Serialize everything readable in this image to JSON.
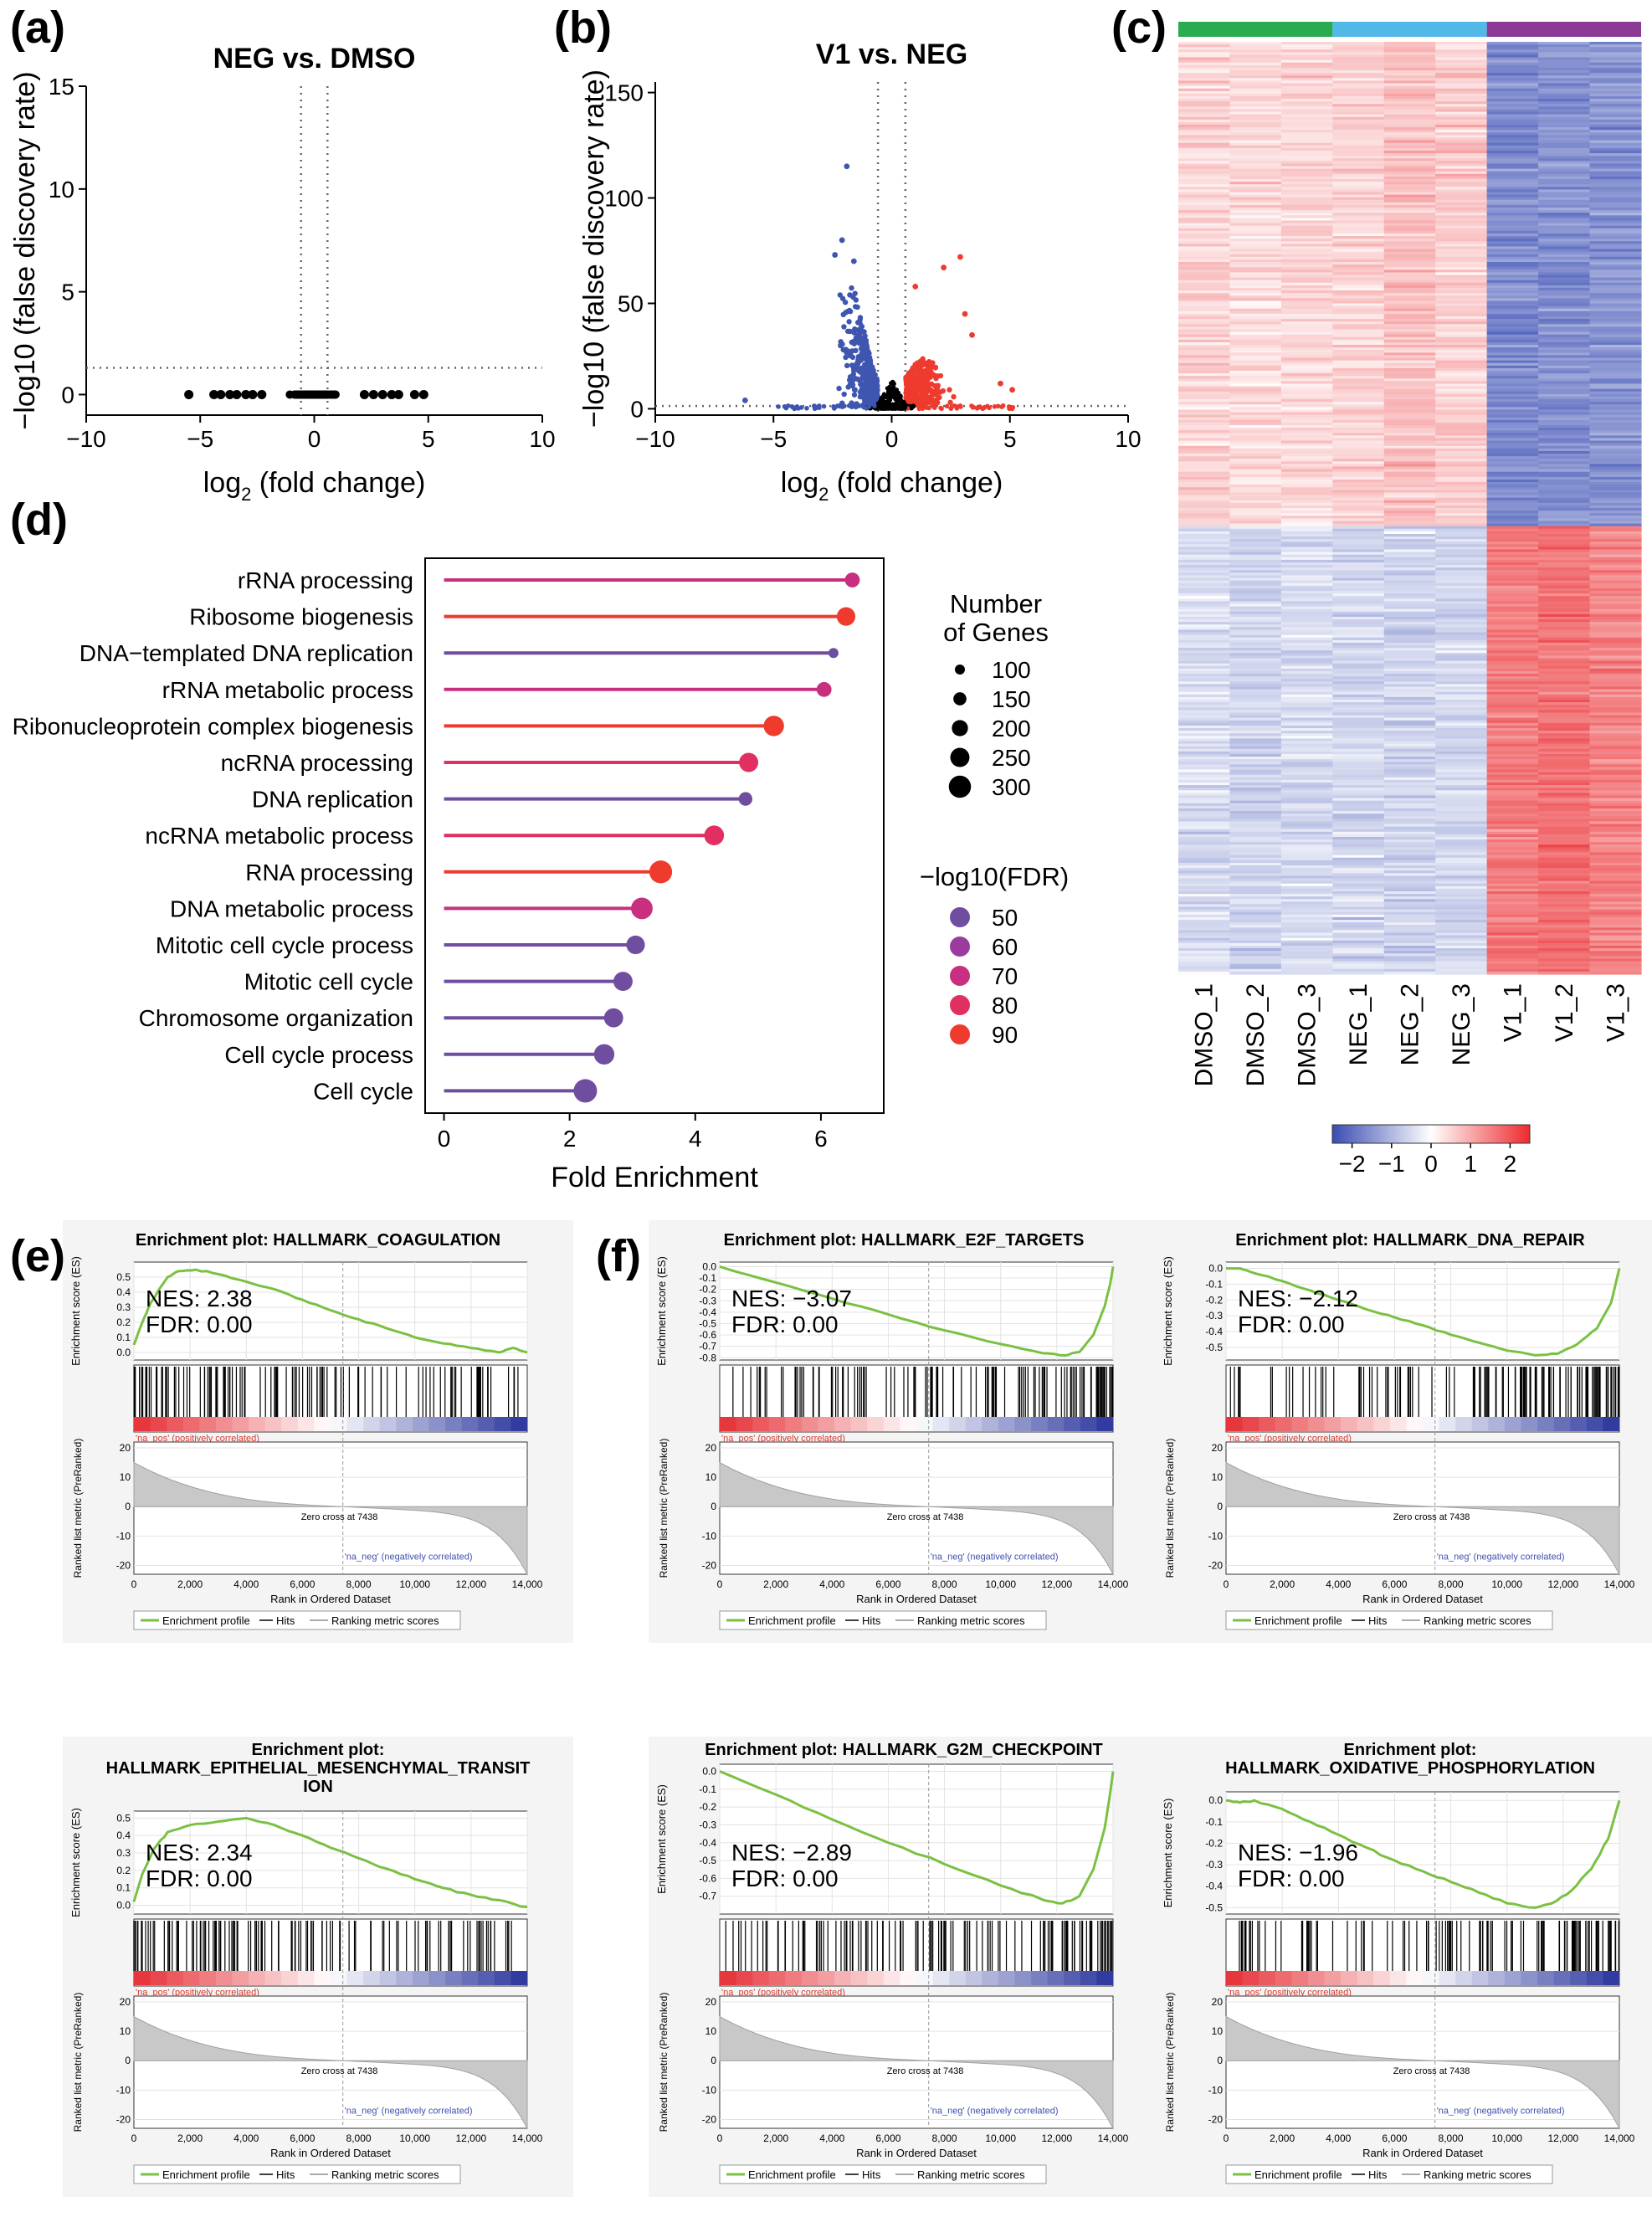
{
  "panel_labels": {
    "a": "(a)",
    "b": "(b)",
    "c": "(c)",
    "d": "(d)",
    "e": "(e)",
    "f": "(f)"
  },
  "colors": {
    "up": "#ee3b2e",
    "down": "#3f56b0",
    "ns": "#000000",
    "green": "#2bab4f",
    "cyan": "#51b8e8",
    "purple": "#8b3a96",
    "es_line": "#7ac143"
  },
  "icons": {
    "legend_dot": "filled-circle",
    "es_line": "green-line"
  },
  "chart_data": [
    {
      "id": "volcano_a",
      "type": "scatter",
      "title": "NEG vs. DMSO",
      "xlabel_main": "log",
      "xlabel_sub": "2",
      "xlabel_rest": " (fold change)",
      "ylabel": "−log10 (false discovery rate)",
      "xlim": [
        -10,
        10
      ],
      "ylim": [
        -1,
        15
      ],
      "xticks": [
        -10,
        -5,
        0,
        5,
        10
      ],
      "yticks": [
        0,
        5,
        10,
        15
      ],
      "xtick_labels": [
        "−10",
        "−5",
        "0",
        "5",
        "10"
      ],
      "ytick_labels": [
        "0",
        "5",
        "10",
        "15"
      ],
      "vlines": [
        -0.58,
        0.58
      ],
      "hline": 1.3,
      "points": {
        "x_min": -5.5,
        "x_max": 4.8,
        "y": 0,
        "explicit_x": [
          -5.5,
          -4.4,
          -4.1,
          -3.7,
          -3.4,
          -3.0,
          -2.7,
          -2.3,
          2.2,
          2.6,
          3.0,
          3.4,
          3.7,
          4.4,
          4.8
        ]
      }
    },
    {
      "id": "volcano_b",
      "type": "scatter",
      "title": "V1 vs. NEG",
      "xlabel_main": "log",
      "xlabel_sub": "2",
      "xlabel_rest": " (fold change)",
      "ylabel": "−log10 (false discovery rate)",
      "xlim": [
        -10,
        10
      ],
      "ylim": [
        -3,
        155
      ],
      "xticks": [
        -10,
        -5,
        0,
        5,
        10
      ],
      "yticks": [
        0,
        50,
        100,
        150
      ],
      "xtick_labels": [
        "−10",
        "−5",
        "0",
        "5",
        "10"
      ],
      "ytick_labels": [
        "0",
        "50",
        "100",
        "150"
      ],
      "vlines": [
        -0.58,
        0.58
      ],
      "hline": 1.3,
      "outliers_down": [
        [
          -1.9,
          115
        ],
        [
          -2.1,
          80
        ],
        [
          -1.6,
          70
        ],
        [
          -2.4,
          73
        ],
        [
          -6.2,
          4
        ]
      ],
      "outliers_up": [
        [
          2.2,
          67
        ],
        [
          2.9,
          72
        ],
        [
          1.0,
          58
        ],
        [
          3.1,
          45
        ],
        [
          3.4,
          35
        ],
        [
          4.6,
          12
        ],
        [
          5.1,
          9
        ]
      ]
    },
    {
      "id": "heatmap_c",
      "type": "heatmap",
      "samples": [
        "DMSO_1",
        "DMSO_2",
        "DMSO_3",
        "NEG_1",
        "NEG_2",
        "NEG_3",
        "V1_1",
        "V1_2",
        "V1_3"
      ],
      "groups": [
        "DMSO",
        "NEG",
        "V1"
      ],
      "upper_means": [
        0.55,
        0.45,
        0.5,
        0.55,
        0.75,
        0.6,
        -1.6,
        -1.5,
        -1.5
      ],
      "lower_means": [
        -0.5,
        -0.6,
        -0.5,
        -0.55,
        -0.6,
        -0.55,
        1.6,
        1.7,
        1.5
      ],
      "upper_fraction": 0.52,
      "color_scale": {
        "min": -2.5,
        "max": 2.5,
        "ticks": [
          -2,
          -1,
          0,
          1,
          2
        ],
        "tick_labels": [
          "−2",
          "−1",
          "0",
          "1",
          "2"
        ]
      }
    },
    {
      "id": "go_enrichment_d",
      "type": "lollipop",
      "xlabel": "Fold Enrichment",
      "xlim": [
        -0.3,
        7.0
      ],
      "xticks": [
        0,
        2,
        4,
        6
      ],
      "xtick_labels": [
        "0",
        "2",
        "4",
        "6"
      ],
      "terms": [
        {
          "label": "rRNA processing",
          "fe": 6.5,
          "genes": 180,
          "fdr": 74
        },
        {
          "label": "Ribosome biogenesis",
          "fe": 6.4,
          "genes": 240,
          "fdr": 88
        },
        {
          "label": "DNA−templated DNA replication",
          "fe": 6.2,
          "genes": 100,
          "fdr": 55
        },
        {
          "label": "rRNA metabolic process",
          "fe": 6.05,
          "genes": 180,
          "fdr": 74
        },
        {
          "label": "Ribonucleoprotein complex biogenesis",
          "fe": 5.25,
          "genes": 270,
          "fdr": 88
        },
        {
          "label": "ncRNA processing",
          "fe": 4.85,
          "genes": 250,
          "fdr": 78
        },
        {
          "label": "DNA replication",
          "fe": 4.8,
          "genes": 160,
          "fdr": 55
        },
        {
          "label": "ncRNA metabolic process",
          "fe": 4.3,
          "genes": 260,
          "fdr": 84
        },
        {
          "label": "RNA processing",
          "fe": 3.45,
          "genes": 310,
          "fdr": 88
        },
        {
          "label": "DNA metabolic process",
          "fe": 3.15,
          "genes": 290,
          "fdr": 74
        },
        {
          "label": "Mitotic cell cycle process",
          "fe": 3.05,
          "genes": 240,
          "fdr": 55
        },
        {
          "label": "Mitotic cell cycle",
          "fe": 2.85,
          "genes": 250,
          "fdr": 55
        },
        {
          "label": "Chromosome organization",
          "fe": 2.7,
          "genes": 250,
          "fdr": 55
        },
        {
          "label": "Cell cycle process",
          "fe": 2.55,
          "genes": 270,
          "fdr": 55
        },
        {
          "label": "Cell cycle",
          "fe": 2.25,
          "genes": 320,
          "fdr": 55
        }
      ],
      "size_legend": {
        "title1": "Number",
        "title2": "of Genes",
        "values": [
          100,
          150,
          200,
          250,
          300
        ],
        "labels": [
          "100",
          "150",
          "200",
          "250",
          "300"
        ]
      },
      "color_legend": {
        "title": "−log10(FDR)",
        "values": [
          50,
          60,
          70,
          80,
          90
        ],
        "labels": [
          "50",
          "60",
          "70",
          "80",
          "90"
        ],
        "colors": [
          "#6f4ea0",
          "#9a3c9d",
          "#c8307f",
          "#e02f60",
          "#ee3b2e"
        ]
      }
    },
    {
      "id": "gsea_panels",
      "type": "line",
      "common": {
        "ranked_ylabel": "Ranked list metric (PreRanked)",
        "es_ylabel": "Enrichment score (ES)",
        "xlabel": "Rank in Ordered Dataset",
        "xticks": [
          0,
          2000,
          4000,
          6000,
          8000,
          10000,
          12000,
          14000
        ],
        "xtick_labels": [
          "0",
          "2,000",
          "4,000",
          "6,000",
          "8,000",
          "10,000",
          "12,000",
          "14,000"
        ],
        "ranked_yticks": [
          20,
          10,
          0,
          -10,
          -20
        ],
        "ranked_ytick_labels": [
          "20",
          "10",
          "0",
          "-10",
          "-20"
        ],
        "na_pos": "'na_pos' (positively correlated)",
        "na_neg": "'na_neg' (negatively correlated)",
        "zero_cross": "Zero cross at 7438",
        "legend": [
          "Enrichment profile",
          "Hits",
          "Ranking metric scores"
        ],
        "nes_prefix": "NES:",
        "fdr_prefix": "FDR:"
      },
      "plots": [
        {
          "title_lines": [
            "Enrichment plot: HALLMARK_COAGULATION"
          ],
          "nes": "2.38",
          "fdr": "0.00",
          "ymin": -0.05,
          "ymax": 0.6,
          "yticks": [
            0.0,
            0.1,
            0.2,
            0.3,
            0.4,
            0.5
          ],
          "ytick_labels": [
            "0.0",
            "0.1",
            "0.2",
            "0.3",
            "0.4",
            "0.5"
          ],
          "es_curve": [
            [
              0,
              0.05
            ],
            [
              300,
              0.2
            ],
            [
              600,
              0.33
            ],
            [
              900,
              0.42
            ],
            [
              1200,
              0.5
            ],
            [
              1600,
              0.54
            ],
            [
              2200,
              0.55
            ],
            [
              3000,
              0.52
            ],
            [
              4000,
              0.47
            ],
            [
              5000,
              0.42
            ],
            [
              6000,
              0.35
            ],
            [
              7000,
              0.28
            ],
            [
              8000,
              0.22
            ],
            [
              9000,
              0.16
            ],
            [
              10000,
              0.1
            ],
            [
              11000,
              0.06
            ],
            [
              12000,
              0.03
            ],
            [
              13000,
              0.0
            ],
            [
              13500,
              0.03
            ],
            [
              14000,
              0.0
            ]
          ],
          "hit_bias": "pos"
        },
        {
          "title_lines": [
            "Enrichment plot: HALLMARK_E2F_TARGETS"
          ],
          "nes": "−3.07",
          "fdr": "0.00",
          "ymin": -0.82,
          "ymax": 0.04,
          "yticks": [
            0.0,
            -0.1,
            -0.2,
            -0.3,
            -0.4,
            -0.5,
            -0.6,
            -0.7,
            -0.8
          ],
          "ytick_labels": [
            "0.0",
            "-0.1",
            "-0.2",
            "-0.3",
            "-0.4",
            "-0.5",
            "-0.6",
            "-0.7",
            "-0.8"
          ],
          "es_curve": [
            [
              0,
              0
            ],
            [
              2000,
              -0.14
            ],
            [
              4000,
              -0.28
            ],
            [
              6000,
              -0.42
            ],
            [
              8000,
              -0.56
            ],
            [
              10000,
              -0.68
            ],
            [
              11500,
              -0.76
            ],
            [
              12300,
              -0.78
            ],
            [
              12800,
              -0.75
            ],
            [
              13300,
              -0.6
            ],
            [
              13700,
              -0.35
            ],
            [
              13900,
              -0.15
            ],
            [
              14000,
              0
            ]
          ],
          "hit_bias": "neg"
        },
        {
          "title_lines": [
            "Enrichment plot: HALLMARK_DNA_REPAIR"
          ],
          "nes": "−2.12",
          "fdr": "0.00",
          "ymin": -0.58,
          "ymax": 0.04,
          "yticks": [
            0.0,
            -0.1,
            -0.2,
            -0.3,
            -0.4,
            -0.5
          ],
          "ytick_labels": [
            "0.0",
            "-0.1",
            "-0.2",
            "-0.3",
            "-0.4",
            "-0.5"
          ],
          "es_curve": [
            [
              0,
              0
            ],
            [
              500,
              0.0
            ],
            [
              1000,
              -0.03
            ],
            [
              2000,
              -0.08
            ],
            [
              3000,
              -0.14
            ],
            [
              4000,
              -0.2
            ],
            [
              5000,
              -0.26
            ],
            [
              6000,
              -0.31
            ],
            [
              7000,
              -0.36
            ],
            [
              8000,
              -0.42
            ],
            [
              9000,
              -0.47
            ],
            [
              10000,
              -0.52
            ],
            [
              11000,
              -0.55
            ],
            [
              11800,
              -0.54
            ],
            [
              12500,
              -0.48
            ],
            [
              13200,
              -0.38
            ],
            [
              13700,
              -0.22
            ],
            [
              14000,
              0
            ]
          ],
          "hit_bias": "neg"
        },
        {
          "title_lines": [
            "Enrichment plot:",
            "HALLMARK_EPITHELIAL_MESENCHYMAL_TRANSIT",
            "ION"
          ],
          "nes": "2.34",
          "fdr": "0.00",
          "ymin": -0.05,
          "ymax": 0.54,
          "yticks": [
            0.0,
            0.1,
            0.2,
            0.3,
            0.4,
            0.5
          ],
          "ytick_labels": [
            "0.0",
            "0.1",
            "0.2",
            "0.3",
            "0.4",
            "0.5"
          ],
          "es_curve": [
            [
              0,
              0.02
            ],
            [
              300,
              0.18
            ],
            [
              700,
              0.32
            ],
            [
              1200,
              0.42
            ],
            [
              2000,
              0.46
            ],
            [
              3000,
              0.48
            ],
            [
              4000,
              0.5
            ],
            [
              5000,
              0.46
            ],
            [
              6000,
              0.4
            ],
            [
              7000,
              0.33
            ],
            [
              8000,
              0.27
            ],
            [
              9000,
              0.21
            ],
            [
              10000,
              0.15
            ],
            [
              11000,
              0.1
            ],
            [
              12000,
              0.06
            ],
            [
              13000,
              0.03
            ],
            [
              14000,
              -0.01
            ]
          ],
          "hit_bias": "pos"
        },
        {
          "title_lines": [
            "Enrichment plot: HALLMARK_G2M_CHECKPOINT"
          ],
          "nes": "−2.89",
          "fdr": "0.00",
          "ymin": -0.8,
          "ymax": 0.04,
          "yticks": [
            0.0,
            -0.1,
            -0.2,
            -0.3,
            -0.4,
            -0.5,
            -0.6,
            -0.7
          ],
          "ytick_labels": [
            "0.0",
            "-0.1",
            "-0.2",
            "-0.3",
            "-0.4",
            "-0.5",
            "-0.6",
            "-0.7"
          ],
          "es_curve": [
            [
              0,
              0
            ],
            [
              2000,
              -0.13
            ],
            [
              4000,
              -0.27
            ],
            [
              6000,
              -0.4
            ],
            [
              8000,
              -0.52
            ],
            [
              10000,
              -0.64
            ],
            [
              11500,
              -0.72
            ],
            [
              12200,
              -0.74
            ],
            [
              12800,
              -0.7
            ],
            [
              13300,
              -0.55
            ],
            [
              13700,
              -0.32
            ],
            [
              13900,
              -0.12
            ],
            [
              14000,
              0
            ]
          ],
          "hit_bias": "neg"
        },
        {
          "title_lines": [
            "Enrichment plot:",
            "HALLMARK_OXIDATIVE_PHOSPHORYLATION"
          ],
          "nes": "−1.96",
          "fdr": "0.00",
          "ymin": -0.53,
          "ymax": 0.04,
          "yticks": [
            0.0,
            -0.1,
            -0.2,
            -0.3,
            -0.4,
            -0.5
          ],
          "ytick_labels": [
            "0.0",
            "-0.1",
            "-0.2",
            "-0.3",
            "-0.4",
            "-0.5"
          ],
          "es_curve": [
            [
              0,
              0
            ],
            [
              500,
              -0.01
            ],
            [
              1000,
              0.0
            ],
            [
              2000,
              -0.04
            ],
            [
              3000,
              -0.1
            ],
            [
              4000,
              -0.16
            ],
            [
              5000,
              -0.22
            ],
            [
              6000,
              -0.28
            ],
            [
              7000,
              -0.33
            ],
            [
              8000,
              -0.38
            ],
            [
              9000,
              -0.43
            ],
            [
              10000,
              -0.48
            ],
            [
              11000,
              -0.5
            ],
            [
              11600,
              -0.48
            ],
            [
              12300,
              -0.42
            ],
            [
              13000,
              -0.32
            ],
            [
              13600,
              -0.18
            ],
            [
              14000,
              0
            ]
          ],
          "hit_bias": "neg"
        }
      ]
    }
  ]
}
